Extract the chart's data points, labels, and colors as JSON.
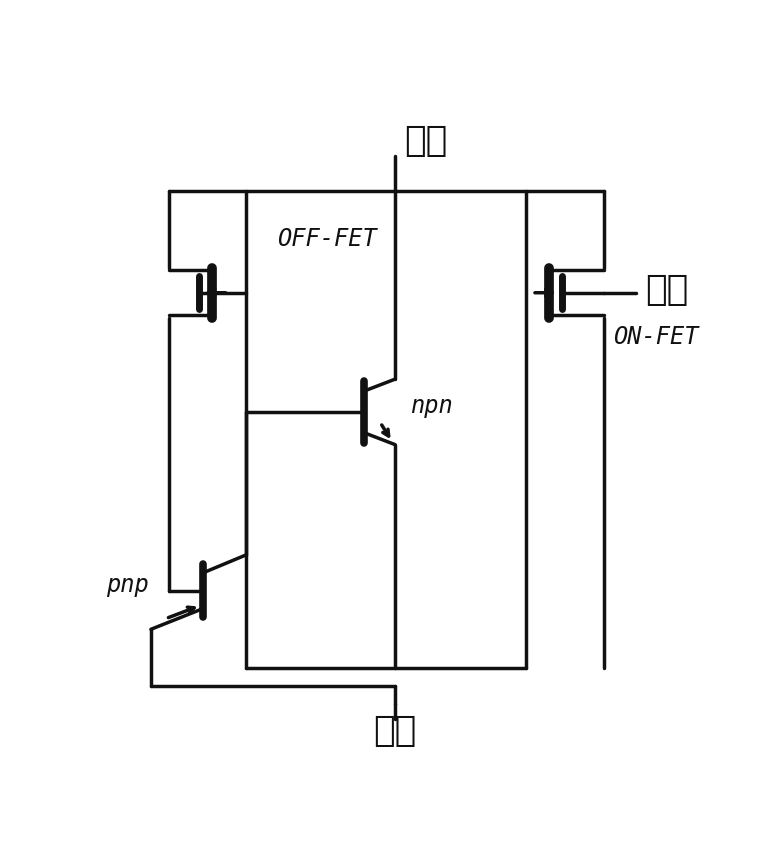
{
  "bg_color": "#ffffff",
  "line_color": "#111111",
  "lw": 2.5,
  "fig_width": 7.71,
  "fig_height": 8.51,
  "labels": {
    "cathode": "阴极",
    "gate": "栊极",
    "anode": "阳极",
    "off_fet": "OFF-FET",
    "on_fet": "ON-FET",
    "npn": "npn",
    "pnp": "pnp"
  }
}
